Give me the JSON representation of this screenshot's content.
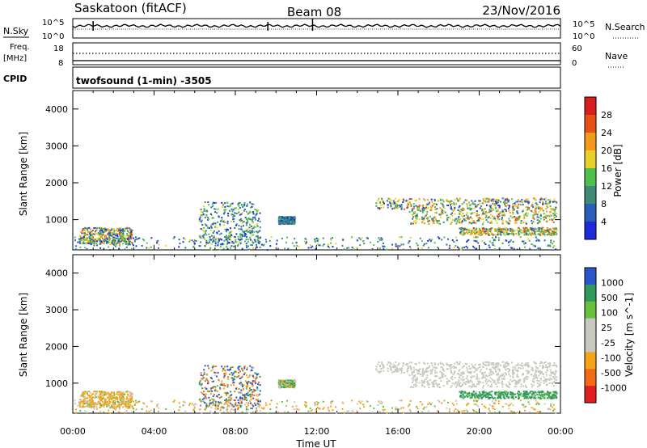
{
  "header": {
    "station": "Saskatoon (fitACF)",
    "beam": "Beam 08",
    "date": "23/Nov/2016"
  },
  "nsky_panel": {
    "left_label": "N.Sky",
    "left_ticks": [
      "10^5",
      "10^0"
    ],
    "right_ticks": [
      "10^5",
      "10^0"
    ],
    "right_label": "N.Search"
  },
  "freq_panel": {
    "left_label_1": "Freq.",
    "left_label_2": "[MHz]",
    "left_ticks": [
      "18",
      "8"
    ],
    "right_ticks": [
      "60",
      "0"
    ],
    "right_label": "Nave"
  },
  "cpid": {
    "label": "CPID",
    "mode": "twofsound (1-min) -3505"
  },
  "colors": {
    "power": [
      "#1f2ad8",
      "#2a5fb8",
      "#3f8a78",
      "#4fbf50",
      "#e8d22a",
      "#f39a1a",
      "#e8501a",
      "#d81f1f"
    ],
    "velocity": [
      "#e02020",
      "#f06a18",
      "#f5a31c",
      "#c8c8c0",
      "#c8c8c0",
      "#66c23c",
      "#2f9a5c",
      "#2a55c8"
    ],
    "ground": "#c8c8c0"
  },
  "chart_data": {
    "type": "heatmap",
    "x_ticks": [
      "00:00",
      "04:00",
      "08:00",
      "12:00",
      "16:00",
      "20:00",
      "00:00"
    ],
    "xlabel": "Time UT",
    "xlim_hours": [
      0,
      24
    ],
    "panels": [
      {
        "name": "power",
        "ylabel": "Slant Range [km]",
        "ylim": [
          180,
          4500
        ],
        "y_ticks": [
          1000,
          2000,
          3000,
          4000
        ],
        "colorbar_label": "Power [dB]",
        "colorbar_ticks": [
          "28",
          "24",
          "20",
          "16",
          "12",
          "8",
          "4"
        ]
      },
      {
        "name": "velocity",
        "ylabel": "Slant Range [km]",
        "ylim": [
          180,
          4500
        ],
        "y_ticks": [
          1000,
          2000,
          3000,
          4000
        ],
        "colorbar_label": "Velocity [m s^-1]",
        "colorbar_ticks": [
          "1000",
          "500",
          "100",
          "25",
          "-25",
          "-100",
          "-500",
          "-1000"
        ]
      }
    ],
    "scatter_regions": [
      {
        "h": [
          0.3,
          2.9
        ],
        "r": [
          350,
          800
        ],
        "pw": [
          4,
          28
        ],
        "v": [
          -500,
          100
        ]
      },
      {
        "h": [
          6.2,
          9.2
        ],
        "r": [
          300,
          1500
        ],
        "pw": [
          4,
          20
        ],
        "v": [
          -1000,
          1000
        ]
      },
      {
        "h": [
          10.1,
          10.9
        ],
        "r": [
          900,
          1100
        ],
        "pw": [
          4,
          16
        ],
        "v": [
          -200,
          200
        ]
      },
      {
        "h": [
          14.8,
          23.8
        ],
        "r": [
          1300,
          1600
        ],
        "pw": [
          4,
          28
        ],
        "v": [
          -25,
          25
        ]
      },
      {
        "h": [
          16.5,
          23.8
        ],
        "r": [
          900,
          1300
        ],
        "pw": [
          8,
          28
        ],
        "v": [
          -25,
          25
        ]
      },
      {
        "h": [
          19.0,
          23.8
        ],
        "r": [
          600,
          800
        ],
        "pw": [
          8,
          28
        ],
        "v": [
          -25,
          500
        ]
      },
      {
        "h": [
          0.0,
          24.0
        ],
        "r": [
          200,
          550
        ],
        "pw": [
          4,
          20
        ],
        "v": [
          -300,
          100
        ]
      }
    ]
  }
}
